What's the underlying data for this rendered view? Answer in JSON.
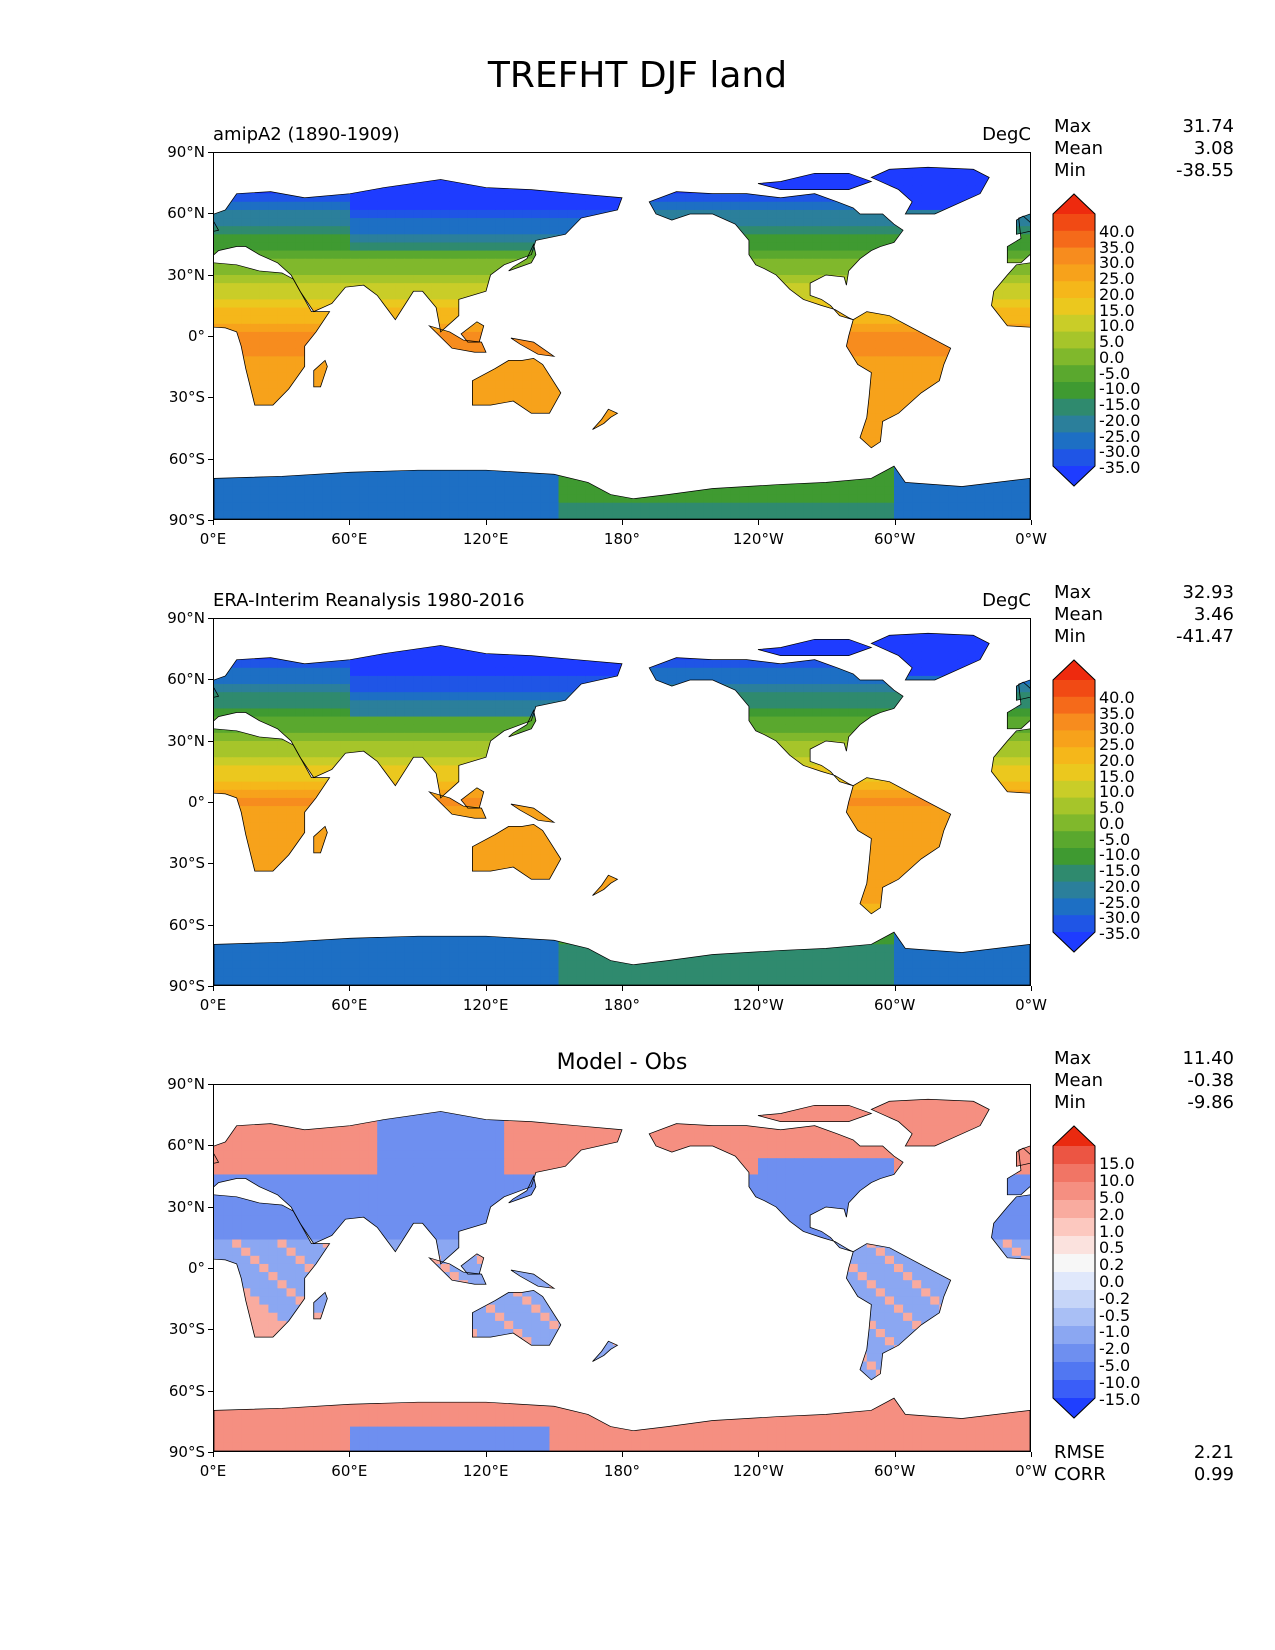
{
  "title": "TREFHT DJF land",
  "lat_labels": [
    "90°N",
    "60°N",
    "30°N",
    "0°",
    "30°S",
    "60°S",
    "90°S"
  ],
  "lon_labels": [
    "0°E",
    "60°E",
    "120°E",
    "180°",
    "120°W",
    "60°W",
    "0°W"
  ],
  "colors": {
    "abs_scale": [
      "#1e3cff",
      "#1f55e6",
      "#1d6fc4",
      "#2b7f9b",
      "#2f8a6e",
      "#3f9a31",
      "#5aa82e",
      "#80b82c",
      "#a6c52a",
      "#c9cd28",
      "#ebc81e",
      "#f5b71a",
      "#f7a21b",
      "#f78c1e",
      "#f56a1a",
      "#f14a14",
      "#ee2a0e"
    ],
    "diff_scale": [
      "#1f3fff",
      "#3a5ef8",
      "#5177f2",
      "#6e8ff0",
      "#8ba7f2",
      "#a9bff5",
      "#c6d5f8",
      "#e0e8fb",
      "#f7f7f7",
      "#fbe2de",
      "#fcc8bf",
      "#f9ab9f",
      "#f58f81",
      "#f17565",
      "#ec5543",
      "#ea2a10"
    ]
  },
  "panels": [
    {
      "left_title": "amipA2 (1890-1909)",
      "center_title": "",
      "units": "DegC",
      "stats": {
        "max_label": "Max",
        "max": "31.74",
        "mean_label": "Mean",
        "mean": "3.08",
        "min_label": "Min",
        "min": "-38.55"
      },
      "colorbar": {
        "levels": [
          "40.0",
          "35.0",
          "30.0",
          "25.0",
          "20.0",
          "15.0",
          "10.0",
          "5.0",
          "0.0",
          "-5.0",
          "-10.0",
          "-15.0",
          "-20.0",
          "-25.0",
          "-30.0",
          "-35.0"
        ],
        "scale": "abs_scale"
      }
    },
    {
      "left_title": "ERA-Interim Reanalysis 1980-2016",
      "center_title": "",
      "units": "DegC",
      "stats": {
        "max_label": "Max",
        "max": "32.93",
        "mean_label": "Mean",
        "mean": "3.46",
        "min_label": "Min",
        "min": "-41.47"
      },
      "colorbar": {
        "levels": [
          "40.0",
          "35.0",
          "30.0",
          "25.0",
          "20.0",
          "15.0",
          "10.0",
          "5.0",
          "0.0",
          "-5.0",
          "-10.0",
          "-15.0",
          "-20.0",
          "-25.0",
          "-30.0",
          "-35.0"
        ],
        "scale": "abs_scale"
      }
    },
    {
      "left_title": "",
      "center_title": "Model - Obs",
      "units": "",
      "stats": {
        "max_label": "Max",
        "max": "11.40",
        "mean_label": "Mean",
        "mean": "-0.38",
        "min_label": "Min",
        "min": "-9.86"
      },
      "colorbar": {
        "levels": [
          "15.0",
          "10.0",
          "5.0",
          "2.0",
          "1.0",
          "0.5",
          "0.2",
          "0.0",
          "-0.2",
          "-0.5",
          "-1.0",
          "-2.0",
          "-5.0",
          "-10.0",
          "-15.0"
        ],
        "scale": "diff_scale"
      },
      "extra_stats": {
        "rmse_label": "RMSE",
        "rmse": "2.21",
        "corr_label": "CORR",
        "corr": "0.99"
      }
    }
  ]
}
